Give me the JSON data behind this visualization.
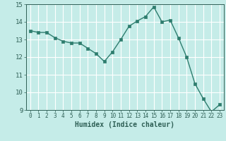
{
  "x": [
    0,
    1,
    2,
    3,
    4,
    5,
    6,
    7,
    8,
    9,
    10,
    11,
    12,
    13,
    14,
    15,
    16,
    17,
    18,
    19,
    20,
    21,
    22,
    23
  ],
  "y": [
    13.5,
    13.4,
    13.4,
    13.1,
    12.9,
    12.8,
    12.8,
    12.5,
    12.2,
    11.75,
    12.3,
    13.0,
    13.75,
    14.05,
    14.3,
    14.85,
    14.0,
    14.1,
    13.1,
    12.0,
    10.5,
    9.65,
    8.9,
    9.3
  ],
  "xlabel": "Humidex (Indice chaleur)",
  "ylim": [
    9,
    15
  ],
  "xlim_left": -0.5,
  "xlim_right": 23.5,
  "yticks": [
    9,
    10,
    11,
    12,
    13,
    14,
    15
  ],
  "xticks": [
    0,
    1,
    2,
    3,
    4,
    5,
    6,
    7,
    8,
    9,
    10,
    11,
    12,
    13,
    14,
    15,
    16,
    17,
    18,
    19,
    20,
    21,
    22,
    23
  ],
  "line_color": "#2e7d6e",
  "marker_color": "#2e7d6e",
  "bg_color": "#c5ece8",
  "grid_color": "#ffffff",
  "tick_label_color": "#2e5f55",
  "xlabel_color": "#2e5f55",
  "tick_fontsize": 5.5,
  "xlabel_fontsize": 7.0,
  "ytick_fontsize": 6.5
}
